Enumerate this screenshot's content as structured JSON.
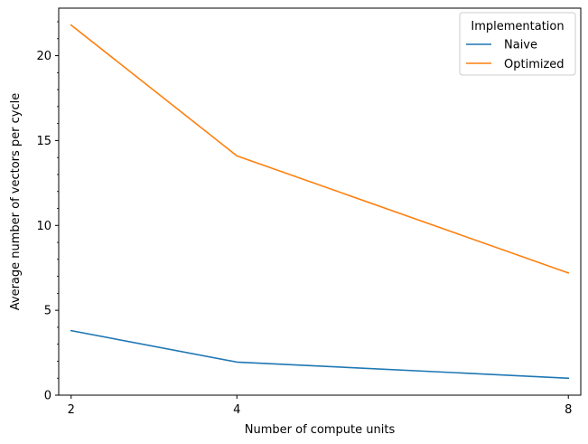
{
  "chart_data": {
    "type": "line",
    "title": "",
    "xlabel": "Number of compute units",
    "ylabel": "Average number of vectors per cycle",
    "x": [
      2,
      4,
      8
    ],
    "xticks": [
      "2",
      "4",
      "8"
    ],
    "xlim": [
      1.85,
      8.15
    ],
    "ylim": [
      0,
      22.8
    ],
    "yticks": [
      0,
      5,
      10,
      15,
      20
    ],
    "yminor_ticks": [
      1,
      2,
      3,
      4,
      6,
      7,
      8,
      9,
      11,
      12,
      13,
      14,
      16,
      17,
      18,
      19,
      21,
      22
    ],
    "series": [
      {
        "name": "Naive",
        "values": [
          3.8,
          1.95,
          1.0
        ],
        "color": "#1f77b4"
      },
      {
        "name": "Optimized",
        "values": [
          21.8,
          14.1,
          7.2
        ],
        "color": "#ff7f0e"
      }
    ],
    "legend": {
      "title": "Implementation",
      "placement": "top-right"
    },
    "grid": false
  }
}
